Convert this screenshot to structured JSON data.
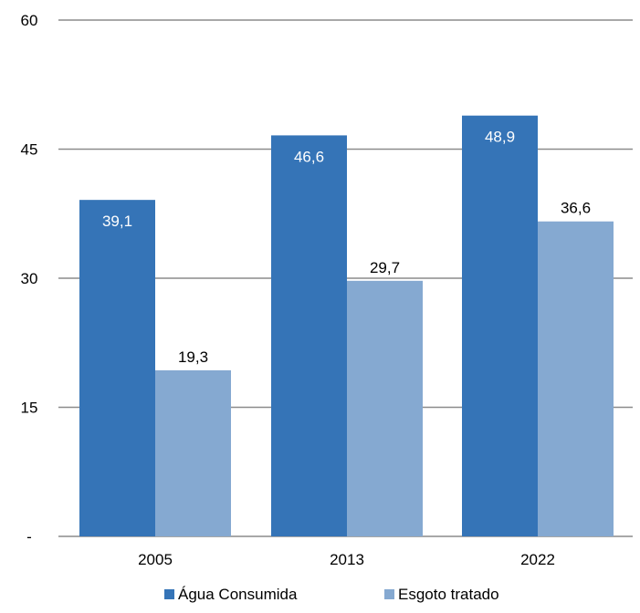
{
  "chart_data": {
    "type": "bar",
    "categories": [
      "2005",
      "2013",
      "2022"
    ],
    "series": [
      {
        "name": "Água Consumida",
        "values": [
          39.1,
          46.6,
          48.9
        ],
        "labels": [
          "39,1",
          "46,6",
          "48,9"
        ],
        "color": "#3574b7",
        "label_color": "#ffffff"
      },
      {
        "name": "Esgoto tratado",
        "values": [
          19.3,
          29.7,
          36.6
        ],
        "labels": [
          "19,3",
          "29,7",
          "36,6"
        ],
        "color": "#85a9d1",
        "label_color": "#000000"
      }
    ],
    "ylim": [
      0,
      60
    ],
    "yticks": [
      0,
      15,
      30,
      45,
      60
    ],
    "ytick_labels": [
      "-",
      "15",
      "30",
      "45",
      "60"
    ],
    "grid": true,
    "grid_color": "#8c8c8c",
    "legend_position": "bottom"
  }
}
